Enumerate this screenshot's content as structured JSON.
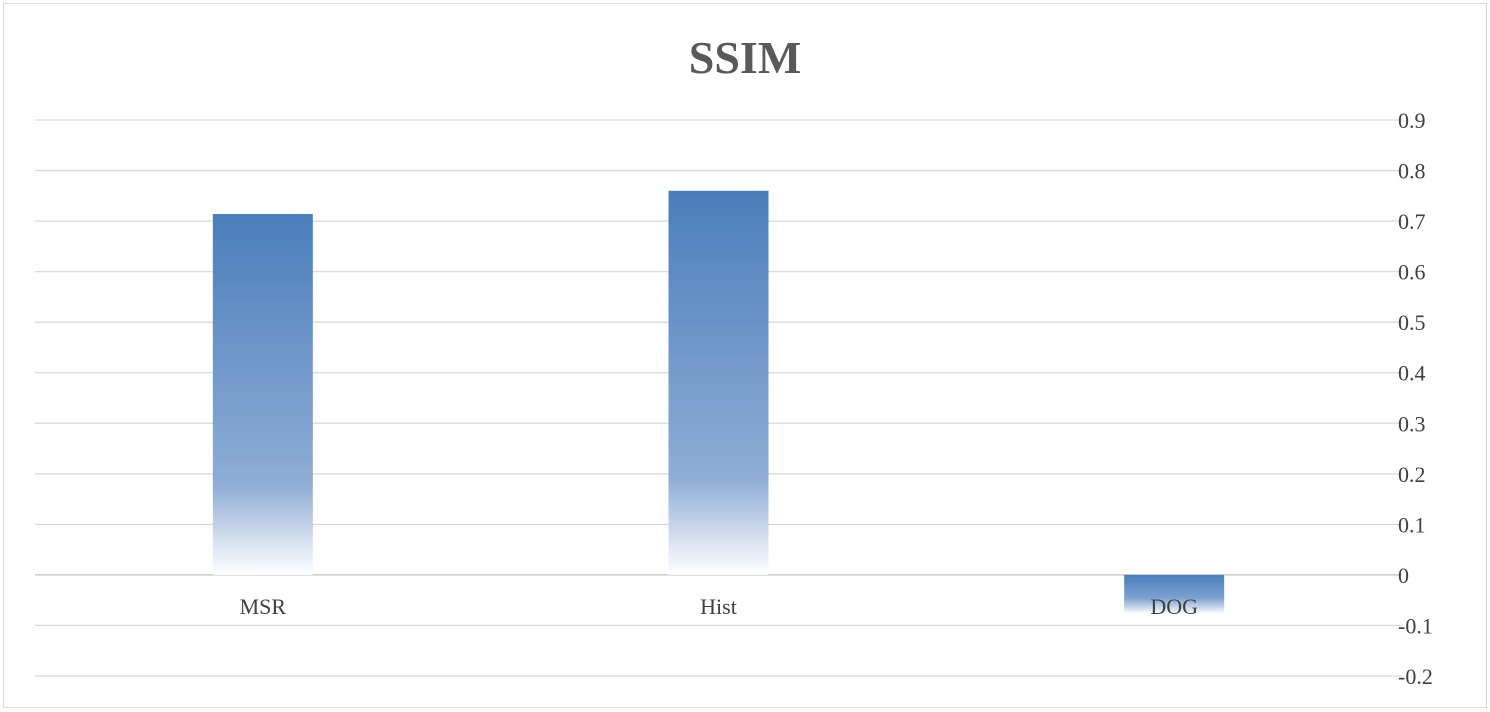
{
  "chart_data": {
    "type": "bar",
    "title": "SSIM",
    "categories": [
      "MSR",
      "Hist",
      "DOG"
    ],
    "values": [
      0.714,
      0.76,
      -0.077
    ],
    "ylim": [
      -0.2,
      0.9
    ],
    "yticks": [
      "0.9",
      "0.8",
      "0.7",
      "0.6",
      "0.5",
      "0.4",
      "0.3",
      "0.2",
      "0.1",
      "0",
      "-0.1",
      "-0.2"
    ],
    "y_axis_side": "right",
    "grid": true,
    "legend": "none",
    "bar_color": "#4a7ebb",
    "bar_fill": "gradient-fade"
  }
}
